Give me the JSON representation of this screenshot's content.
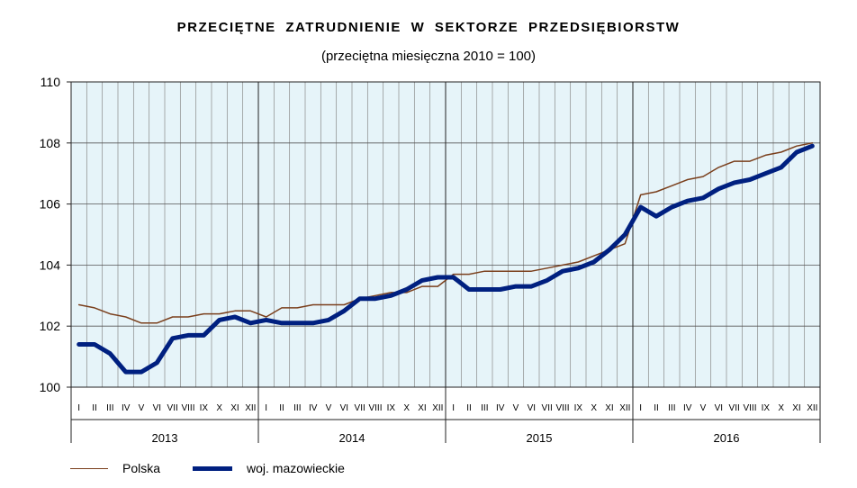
{
  "title": "PRZECIĘTNE ZATRUDNIENIE W SEKTORZE PRZEDSIĘBIORSTW",
  "subtitle": "(przeciętna miesięczna 2010 = 100)",
  "chart_data": {
    "type": "line",
    "ylim": [
      100,
      110
    ],
    "yticks": [
      100,
      102,
      104,
      106,
      108,
      110
    ],
    "grid": true,
    "legend_position": "bottom-left",
    "month_labels": [
      "I",
      "II",
      "III",
      "IV",
      "V",
      "VI",
      "VII",
      "VIII",
      "IX",
      "X",
      "XI",
      "XII"
    ],
    "years": [
      "2013",
      "2014",
      "2015",
      "2016"
    ],
    "background_color": "#e6f4f9",
    "series": [
      {
        "name": "Polska",
        "color": "#7a3f1c",
        "values": [
          102.7,
          102.6,
          102.4,
          102.3,
          102.1,
          102.1,
          102.3,
          102.3,
          102.4,
          102.4,
          102.5,
          102.5,
          102.3,
          102.6,
          102.6,
          102.7,
          102.7,
          102.7,
          102.9,
          103.0,
          103.1,
          103.1,
          103.3,
          103.3,
          103.7,
          103.7,
          103.8,
          103.8,
          103.8,
          103.8,
          103.9,
          104.0,
          104.1,
          104.3,
          104.5,
          104.7,
          106.3,
          106.4,
          106.6,
          106.8,
          106.9,
          107.2,
          107.4,
          107.4,
          107.6,
          107.7,
          107.9,
          108.0
        ]
      },
      {
        "name": "woj. mazowieckie",
        "color": "#002080",
        "values": [
          101.4,
          101.4,
          101.1,
          100.5,
          100.5,
          100.8,
          101.6,
          101.7,
          101.7,
          102.2,
          102.3,
          102.1,
          102.2,
          102.1,
          102.1,
          102.1,
          102.2,
          102.5,
          102.9,
          102.9,
          103.0,
          103.2,
          103.5,
          103.6,
          103.6,
          103.2,
          103.2,
          103.2,
          103.3,
          103.3,
          103.5,
          103.8,
          103.9,
          104.1,
          104.5,
          105.0,
          105.9,
          105.6,
          105.9,
          106.1,
          106.2,
          106.5,
          106.7,
          106.8,
          107.0,
          107.2,
          107.7,
          107.9
        ]
      }
    ]
  }
}
